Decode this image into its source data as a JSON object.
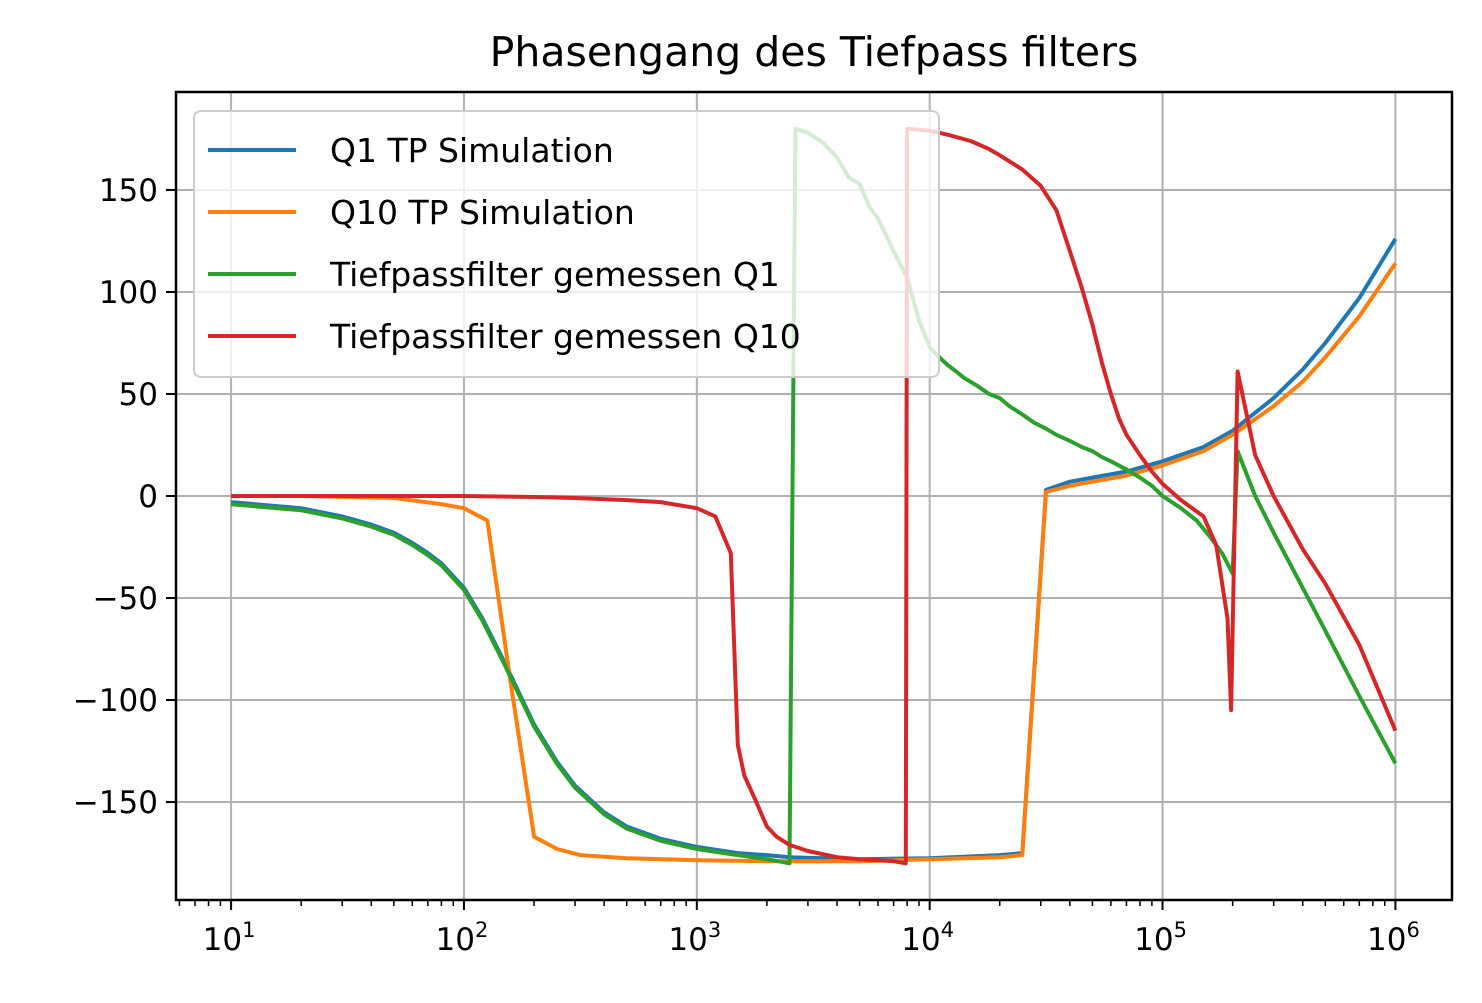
{
  "chart_data": {
    "type": "line",
    "title": "Phasengang des Tiefpass filters",
    "xlabel": "",
    "ylabel": "",
    "xscale": "log",
    "xlim": [
      5.8,
      1750000
    ],
    "ylim": [
      -198,
      198
    ],
    "x_ticks": [
      {
        "value": 10,
        "base": "10",
        "exp": "1"
      },
      {
        "value": 100,
        "base": "10",
        "exp": "2"
      },
      {
        "value": 1000,
        "base": "10",
        "exp": "3"
      },
      {
        "value": 10000,
        "base": "10",
        "exp": "4"
      },
      {
        "value": 100000,
        "base": "10",
        "exp": "5"
      },
      {
        "value": 1000000,
        "base": "10",
        "exp": "6"
      }
    ],
    "y_ticks": [
      {
        "value": 150,
        "label": "150"
      },
      {
        "value": 100,
        "label": "100"
      },
      {
        "value": 50,
        "label": "50"
      },
      {
        "value": 0,
        "label": "0"
      },
      {
        "value": -50,
        "label": "−50"
      },
      {
        "value": -100,
        "label": "−100"
      },
      {
        "value": -150,
        "label": "−150"
      }
    ],
    "grid": true,
    "legend_position": "upper-left",
    "series": [
      {
        "name": "Q1 TP Simulation",
        "color": "#1f77b4",
        "points": [
          [
            10,
            -3
          ],
          [
            20,
            -6
          ],
          [
            30,
            -10
          ],
          [
            40,
            -14
          ],
          [
            50,
            -18
          ],
          [
            60,
            -23
          ],
          [
            70,
            -28
          ],
          [
            80,
            -33
          ],
          [
            100,
            -45
          ],
          [
            120,
            -60
          ],
          [
            150,
            -82
          ],
          [
            200,
            -112
          ],
          [
            250,
            -130
          ],
          [
            300,
            -142
          ],
          [
            400,
            -155
          ],
          [
            500,
            -162
          ],
          [
            700,
            -168
          ],
          [
            1000,
            -172
          ],
          [
            1500,
            -175
          ],
          [
            2000,
            -176
          ],
          [
            2500,
            -177
          ],
          [
            5000,
            -178
          ],
          [
            10000,
            -177.5
          ],
          [
            20000,
            -176
          ],
          [
            25000,
            -175
          ],
          [
            31600,
            3
          ],
          [
            40000,
            7
          ],
          [
            50000,
            9
          ],
          [
            70000,
            12
          ],
          [
            100000,
            17
          ],
          [
            150000,
            24
          ],
          [
            200000,
            32
          ],
          [
            300000,
            48
          ],
          [
            400000,
            62
          ],
          [
            500000,
            75
          ],
          [
            700000,
            97
          ],
          [
            1000000,
            126
          ]
        ]
      },
      {
        "name": "Q10 TP Simulation",
        "color": "#ff7f0e",
        "points": [
          [
            10,
            0
          ],
          [
            20,
            0
          ],
          [
            50,
            -1
          ],
          [
            80,
            -4
          ],
          [
            100,
            -6
          ],
          [
            126,
            -12
          ],
          [
            158,
            -90
          ],
          [
            200,
            -167
          ],
          [
            251,
            -173
          ],
          [
            316,
            -176
          ],
          [
            500,
            -177.5
          ],
          [
            1000,
            -178.5
          ],
          [
            2000,
            -179
          ],
          [
            5000,
            -179
          ],
          [
            10000,
            -178
          ],
          [
            20000,
            -177
          ],
          [
            25000,
            -176
          ],
          [
            31600,
            2
          ],
          [
            40000,
            5
          ],
          [
            50000,
            7
          ],
          [
            70000,
            10
          ],
          [
            100000,
            15
          ],
          [
            150000,
            22
          ],
          [
            200000,
            30
          ],
          [
            300000,
            44
          ],
          [
            400000,
            56
          ],
          [
            500000,
            68
          ],
          [
            700000,
            88
          ],
          [
            1000000,
            114
          ]
        ]
      },
      {
        "name": "Tiefpassfilter gemessen Q1",
        "color": "#2ca02c",
        "points": [
          [
            10,
            -4
          ],
          [
            20,
            -7
          ],
          [
            30,
            -11
          ],
          [
            40,
            -15
          ],
          [
            50,
            -19
          ],
          [
            60,
            -24
          ],
          [
            70,
            -29
          ],
          [
            80,
            -34
          ],
          [
            100,
            -46
          ],
          [
            120,
            -61
          ],
          [
            150,
            -83
          ],
          [
            200,
            -113
          ],
          [
            250,
            -131
          ],
          [
            300,
            -143
          ],
          [
            400,
            -156
          ],
          [
            500,
            -163
          ],
          [
            700,
            -169
          ],
          [
            1000,
            -173
          ],
          [
            1500,
            -176
          ],
          [
            2000,
            -178
          ],
          [
            2500,
            -180
          ],
          [
            2650,
            180
          ],
          [
            3000,
            178
          ],
          [
            3500,
            173
          ],
          [
            4000,
            166
          ],
          [
            4500,
            156
          ],
          [
            5000,
            153
          ],
          [
            5500,
            142
          ],
          [
            6000,
            136
          ],
          [
            7000,
            120
          ],
          [
            8000,
            107
          ],
          [
            9000,
            86
          ],
          [
            10000,
            73
          ],
          [
            11000,
            68
          ],
          [
            12000,
            64
          ],
          [
            13000,
            61
          ],
          [
            14000,
            58
          ],
          [
            16000,
            54
          ],
          [
            18000,
            50
          ],
          [
            20000,
            48
          ],
          [
            22000,
            44
          ],
          [
            25000,
            40
          ],
          [
            28000,
            36
          ],
          [
            31600,
            33
          ],
          [
            35000,
            30
          ],
          [
            40000,
            27
          ],
          [
            45000,
            24
          ],
          [
            50000,
            22
          ],
          [
            55000,
            19
          ],
          [
            60000,
            17
          ],
          [
            70000,
            13
          ],
          [
            80000,
            9
          ],
          [
            90000,
            5
          ],
          [
            100000,
            0
          ],
          [
            120000,
            -6
          ],
          [
            140000,
            -12
          ],
          [
            160000,
            -20
          ],
          [
            180000,
            -28
          ],
          [
            200000,
            -38
          ],
          [
            210000,
            22
          ],
          [
            250000,
            0
          ],
          [
            300000,
            -18
          ],
          [
            400000,
            -45
          ],
          [
            500000,
            -66
          ],
          [
            700000,
            -98
          ],
          [
            1000000,
            -131
          ]
        ]
      },
      {
        "name": "Tiefpassfilter gemessen Q10",
        "color": "#d62728",
        "points": [
          [
            10,
            0
          ],
          [
            50,
            0
          ],
          [
            100,
            0
          ],
          [
            200,
            -0.5
          ],
          [
            300,
            -1
          ],
          [
            500,
            -2
          ],
          [
            700,
            -3
          ],
          [
            1000,
            -6
          ],
          [
            1200,
            -10
          ],
          [
            1400,
            -28
          ],
          [
            1500,
            -122
          ],
          [
            1600,
            -137
          ],
          [
            1800,
            -150
          ],
          [
            2000,
            -162
          ],
          [
            2200,
            -167
          ],
          [
            2500,
            -171
          ],
          [
            3000,
            -174
          ],
          [
            4000,
            -177
          ],
          [
            5000,
            -178
          ],
          [
            7000,
            -179
          ],
          [
            7900,
            -180
          ],
          [
            8000,
            180
          ],
          [
            10000,
            179
          ],
          [
            12000,
            177
          ],
          [
            15000,
            174
          ],
          [
            18000,
            170
          ],
          [
            20000,
            167
          ],
          [
            25000,
            160
          ],
          [
            30000,
            152
          ],
          [
            35000,
            140
          ],
          [
            40000,
            120
          ],
          [
            45000,
            102
          ],
          [
            50000,
            84
          ],
          [
            55000,
            65
          ],
          [
            60000,
            50
          ],
          [
            65000,
            38
          ],
          [
            70000,
            30
          ],
          [
            80000,
            20
          ],
          [
            90000,
            12
          ],
          [
            100000,
            6
          ],
          [
            120000,
            -2
          ],
          [
            150000,
            -10
          ],
          [
            170000,
            -24
          ],
          [
            190000,
            -60
          ],
          [
            197000,
            -105
          ],
          [
            210000,
            61
          ],
          [
            250000,
            20
          ],
          [
            300000,
            0
          ],
          [
            400000,
            -26
          ],
          [
            500000,
            -43
          ],
          [
            700000,
            -73
          ],
          [
            1000000,
            -115
          ]
        ]
      }
    ]
  }
}
